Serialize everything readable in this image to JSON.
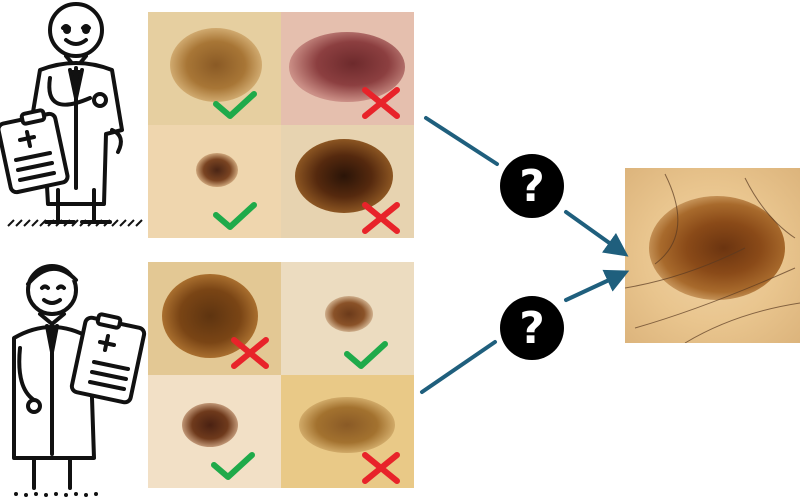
{
  "colors": {
    "arrow": "#1f5f7d",
    "check": "#1faa4a",
    "cross": "#e8232a",
    "question_badge": "#000000",
    "outline": "#111111"
  },
  "icons": {
    "question": "question-mark-icon",
    "correct": "checkmark-icon",
    "incorrect": "cross-icon"
  },
  "doctor_1": {
    "labels": [
      "benign",
      "malignant",
      "benign",
      "malignant"
    ]
  },
  "doctor_2": {
    "labels": [
      "malignant",
      "benign",
      "benign",
      "malignant"
    ]
  },
  "question_glyph": "?"
}
